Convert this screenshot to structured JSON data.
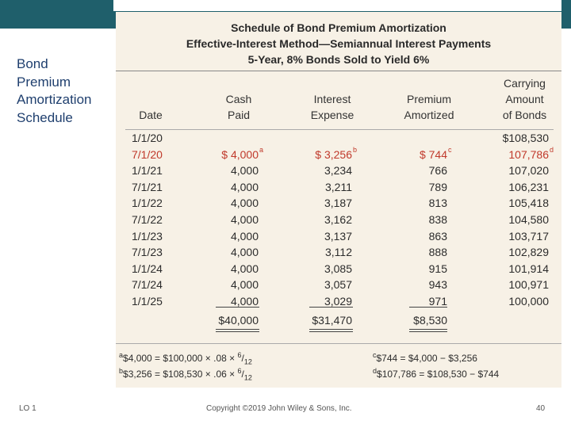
{
  "side_title": [
    "Bond",
    "Premium",
    "Amortization",
    "Schedule"
  ],
  "table_title": {
    "line1": "Schedule of Bond Premium Amortization",
    "line2": "Effective-Interest Method—Semiannual Interest Payments",
    "line3": "5-Year, 8% Bonds Sold to Yield 6%"
  },
  "columns": {
    "date": "Date",
    "cash_paid": [
      "Cash",
      "Paid"
    ],
    "interest_expense": [
      "Interest",
      "Expense"
    ],
    "premium_amortized": [
      "Premium",
      "Amortized"
    ],
    "carrying_amount": [
      "Carrying",
      "Amount",
      "of Bonds"
    ]
  },
  "rows": [
    {
      "date": "1/1/20",
      "cash": "",
      "interest": "",
      "premium": "",
      "carrying": "$108,530"
    },
    {
      "date": "7/1/20",
      "cash": "$ 4,000",
      "interest": "$ 3,256",
      "premium": "$ 744",
      "carrying": "107,786"
    },
    {
      "date": "1/1/21",
      "cash": "4,000",
      "interest": "3,234",
      "premium": "766",
      "carrying": "107,020"
    },
    {
      "date": "7/1/21",
      "cash": "4,000",
      "interest": "3,211",
      "premium": "789",
      "carrying": "106,231"
    },
    {
      "date": "1/1/22",
      "cash": "4,000",
      "interest": "3,187",
      "premium": "813",
      "carrying": "105,418"
    },
    {
      "date": "7/1/22",
      "cash": "4,000",
      "interest": "3,162",
      "premium": "838",
      "carrying": "104,580"
    },
    {
      "date": "1/1/23",
      "cash": "4,000",
      "interest": "3,137",
      "premium": "863",
      "carrying": "103,717"
    },
    {
      "date": "7/1/23",
      "cash": "4,000",
      "interest": "3,112",
      "premium": "888",
      "carrying": "102,829"
    },
    {
      "date": "1/1/24",
      "cash": "4,000",
      "interest": "3,085",
      "premium": "915",
      "carrying": "101,914"
    },
    {
      "date": "7/1/24",
      "cash": "4,000",
      "interest": "3,057",
      "premium": "943",
      "carrying": "100,971"
    },
    {
      "date": "1/1/25",
      "cash": "4,000",
      "interest": "3,029",
      "premium": "971",
      "carrying": "100,000"
    }
  ],
  "marks": {
    "cash": "a",
    "interest": "b",
    "premium": "c",
    "carrying": "d"
  },
  "totals": {
    "cash": "$40,000",
    "interest": "$31,470",
    "premium": "$8,530"
  },
  "footnotes": {
    "a": {
      "mark": "a",
      "text": "$4,000 = $100,000 × .08 × ",
      "num": "6",
      "den": "12"
    },
    "b": {
      "mark": "b",
      "text": "$3,256 = $108,530 × .06 × ",
      "num": "6",
      "den": "12"
    },
    "c": {
      "mark": "c",
      "text": "$744 = $4,000 − $3,256"
    },
    "d": {
      "mark": "d",
      "text": "$107,786 = $108,530 − $744"
    }
  },
  "bottom": {
    "left": "LO 1",
    "center": "Copyright ©2019 John Wiley & Sons, Inc.",
    "page": "40"
  },
  "colors": {
    "header_bar": "#1f5f6b",
    "title_text": "#1f3f6e",
    "panel": "#f7f1e6",
    "highlight": "#c0392b"
  }
}
